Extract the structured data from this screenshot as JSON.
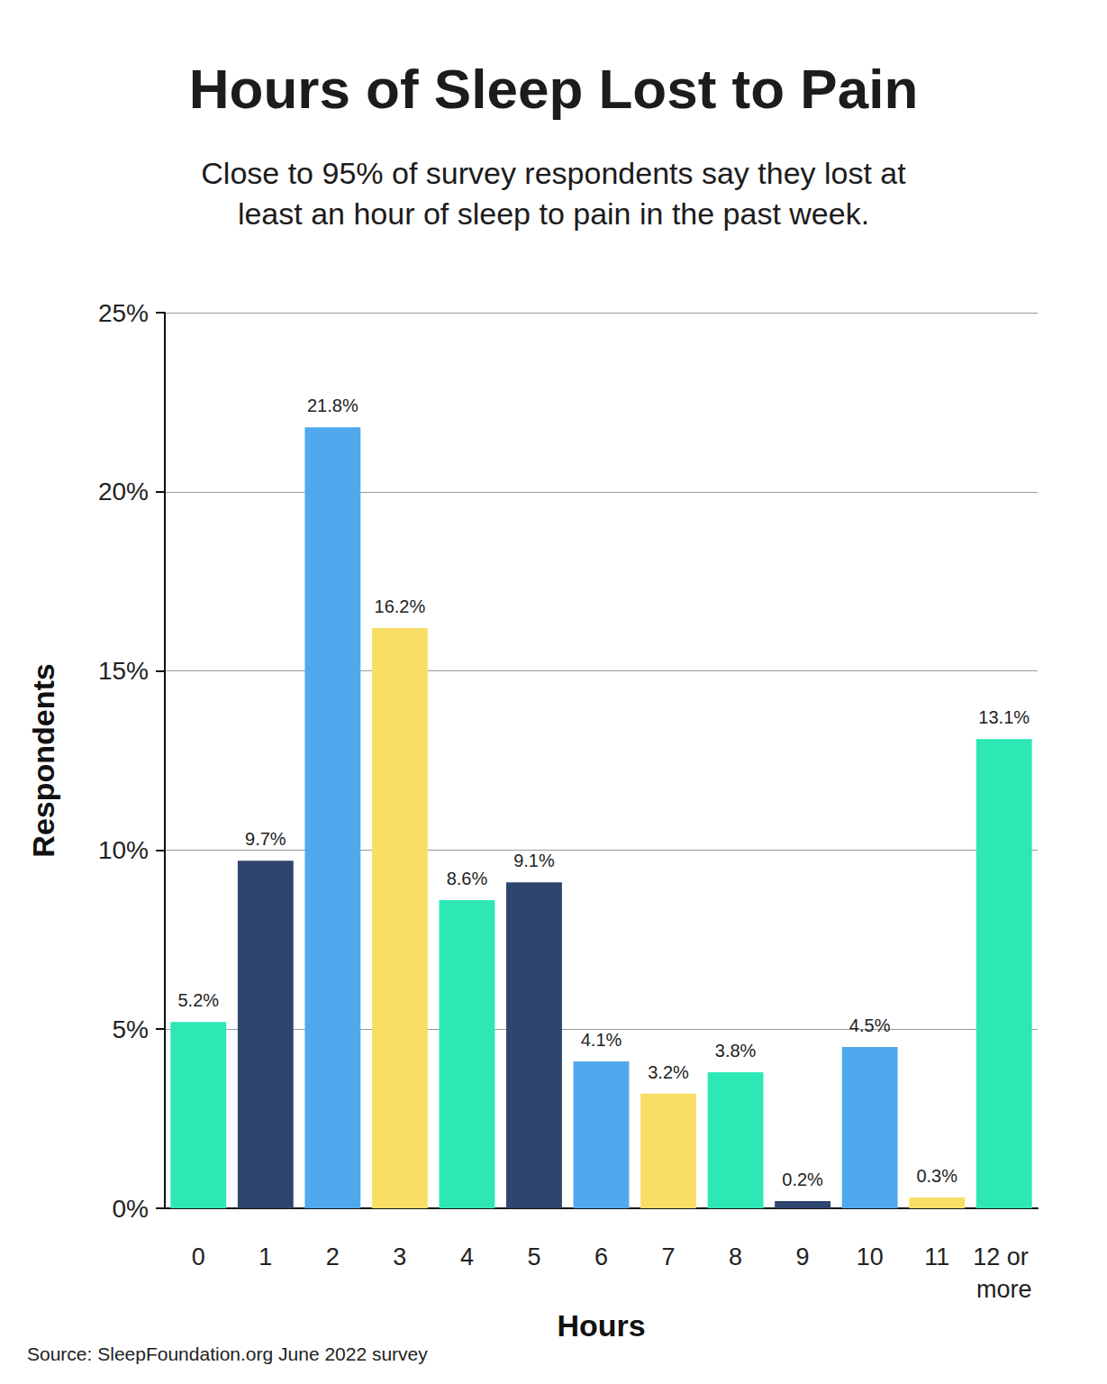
{
  "chart_data": {
    "type": "bar",
    "title": "Hours of Sleep Lost to Pain",
    "subtitle": "Close to 95% of survey respondents say they lost at\nleast an hour of sleep to pain in the past week.",
    "x_label": "Hours",
    "y_label": "Respondents",
    "source": "Source: SleepFoundation.org June 2022 survey",
    "categories": [
      "0",
      "1",
      "2",
      "3",
      "4",
      "5",
      "6",
      "7",
      "8",
      "9",
      "10",
      "11",
      "12 or more"
    ],
    "values": [
      5.2,
      9.7,
      21.8,
      16.2,
      8.6,
      9.1,
      4.1,
      3.2,
      3.8,
      0.2,
      4.5,
      0.3,
      13.1
    ],
    "value_labels": [
      "5.2%",
      "9.7%",
      "21.8%",
      "16.2%",
      "8.6%",
      "9.1%",
      "4.1%",
      "3.2%",
      "3.8%",
      "0.2%",
      "4.5%",
      "0.3%",
      "13.1%"
    ],
    "colors": [
      "#2de8b5",
      "#2e456e",
      "#4fa9ec",
      "#f8de64",
      "#2de8b5",
      "#2e456e",
      "#4fa9ec",
      "#f8de64",
      "#2de8b5",
      "#2e456e",
      "#4fa9ec",
      "#f8de64",
      "#2de8b5"
    ],
    "ylim": [
      0,
      25
    ],
    "yticks": [
      {
        "value": 0,
        "label": "0%"
      },
      {
        "value": 5,
        "label": "5%"
      },
      {
        "value": 10,
        "label": "10%"
      },
      {
        "value": 15,
        "label": "15%"
      },
      {
        "value": 20,
        "label": "20%"
      },
      {
        "value": 25,
        "label": "25%"
      }
    ],
    "grid": true,
    "data_labels": true
  }
}
